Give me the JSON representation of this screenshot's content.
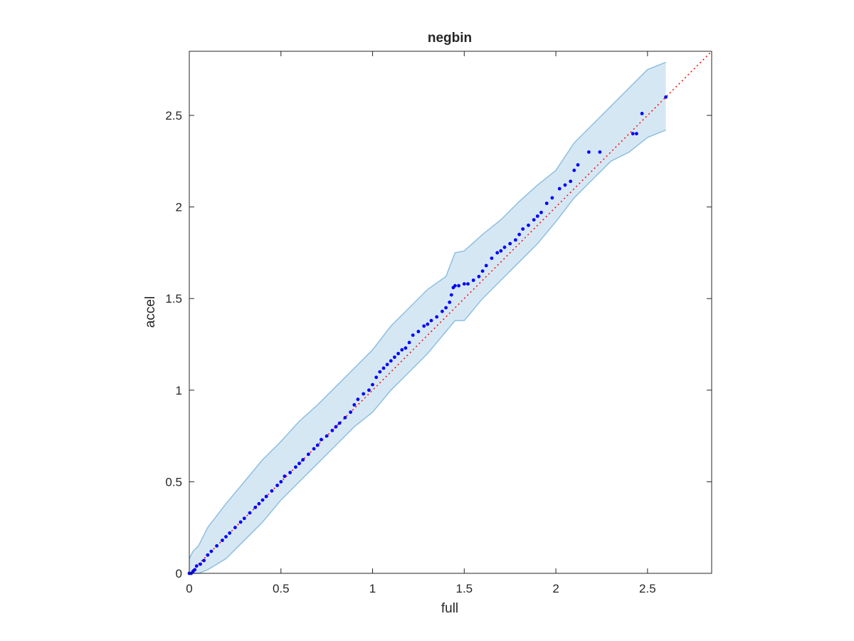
{
  "chart_data": {
    "type": "scatter",
    "title": "negbin",
    "xlabel": "full",
    "ylabel": "accel",
    "xlim": [
      0,
      2.85
    ],
    "ylim": [
      0,
      2.85
    ],
    "xticks": [
      "0",
      "0.5",
      "1",
      "1.5",
      "2",
      "2.5"
    ],
    "xtick_values": [
      0,
      0.5,
      1,
      1.5,
      2,
      2.5
    ],
    "yticks": [
      "0",
      "0.5",
      "1",
      "1.5",
      "2",
      "2.5"
    ],
    "ytick_values": [
      0,
      0.5,
      1,
      1.5,
      2,
      2.5
    ],
    "grid": false,
    "legend": "none",
    "colors": {
      "points": "#0000ff",
      "reference_line": "#ff0000",
      "band_fill": "#d6e7f4",
      "band_edge": "#8dbfe0",
      "axes": "#262626"
    },
    "reference_line": {
      "style": "dotted",
      "from": [
        0,
        0
      ],
      "to": [
        2.85,
        2.85
      ]
    },
    "band": {
      "x": [
        0.0,
        0.02,
        0.05,
        0.1,
        0.2,
        0.3,
        0.4,
        0.5,
        0.6,
        0.7,
        0.8,
        0.9,
        1.0,
        1.1,
        1.2,
        1.3,
        1.4,
        1.45,
        1.5,
        1.6,
        1.7,
        1.8,
        1.9,
        2.0,
        2.1,
        2.2,
        2.3,
        2.4,
        2.5,
        2.6
      ],
      "upper": [
        0.08,
        0.12,
        0.15,
        0.25,
        0.38,
        0.5,
        0.62,
        0.72,
        0.83,
        0.92,
        1.02,
        1.12,
        1.22,
        1.35,
        1.45,
        1.55,
        1.62,
        1.75,
        1.76,
        1.85,
        1.93,
        2.03,
        2.12,
        2.2,
        2.35,
        2.45,
        2.55,
        2.65,
        2.75,
        2.79
      ],
      "lower": [
        0.0,
        0.0,
        0.0,
        0.02,
        0.08,
        0.18,
        0.28,
        0.4,
        0.5,
        0.6,
        0.7,
        0.8,
        0.88,
        1.0,
        1.1,
        1.2,
        1.32,
        1.38,
        1.38,
        1.5,
        1.6,
        1.7,
        1.8,
        1.92,
        2.05,
        2.15,
        2.25,
        2.3,
        2.38,
        2.42
      ]
    },
    "series": [
      {
        "x": [
          0.0,
          0.01,
          0.02,
          0.03,
          0.04,
          0.06,
          0.08,
          0.1,
          0.12,
          0.15,
          0.18,
          0.2,
          0.22,
          0.25,
          0.28,
          0.3,
          0.33,
          0.36,
          0.38,
          0.4,
          0.42,
          0.45,
          0.48,
          0.5,
          0.52,
          0.55,
          0.58,
          0.6,
          0.62,
          0.65,
          0.68,
          0.7,
          0.72,
          0.75,
          0.78,
          0.8,
          0.82,
          0.85,
          0.88,
          0.9,
          0.92,
          0.95,
          0.98,
          1.0,
          1.02,
          1.04,
          1.06,
          1.08,
          1.1,
          1.12,
          1.14,
          1.16,
          1.18,
          1.2,
          1.22,
          1.25,
          1.28,
          1.3,
          1.32,
          1.35,
          1.38,
          1.4,
          1.42,
          1.43,
          1.44,
          1.45,
          1.47,
          1.5,
          1.52,
          1.55,
          1.58,
          1.6,
          1.62,
          1.65,
          1.68,
          1.7,
          1.72,
          1.75,
          1.78,
          1.8,
          1.82,
          1.85,
          1.88,
          1.9,
          1.92,
          1.95,
          1.98,
          2.02,
          2.05,
          2.08,
          2.1,
          2.12,
          2.18,
          2.24,
          2.42,
          2.44,
          2.47,
          2.6
        ],
        "y": [
          0.0,
          0.0,
          0.01,
          0.02,
          0.04,
          0.05,
          0.07,
          0.1,
          0.12,
          0.15,
          0.18,
          0.2,
          0.22,
          0.25,
          0.28,
          0.3,
          0.33,
          0.36,
          0.38,
          0.4,
          0.42,
          0.45,
          0.48,
          0.5,
          0.53,
          0.55,
          0.58,
          0.6,
          0.62,
          0.65,
          0.68,
          0.7,
          0.73,
          0.75,
          0.78,
          0.8,
          0.82,
          0.85,
          0.88,
          0.92,
          0.95,
          0.98,
          1.0,
          1.03,
          1.07,
          1.1,
          1.12,
          1.14,
          1.16,
          1.18,
          1.2,
          1.22,
          1.23,
          1.26,
          1.3,
          1.32,
          1.35,
          1.36,
          1.38,
          1.4,
          1.43,
          1.45,
          1.48,
          1.52,
          1.56,
          1.57,
          1.57,
          1.58,
          1.58,
          1.6,
          1.62,
          1.65,
          1.68,
          1.72,
          1.75,
          1.76,
          1.78,
          1.8,
          1.82,
          1.85,
          1.88,
          1.9,
          1.93,
          1.95,
          1.97,
          2.02,
          2.05,
          2.1,
          2.12,
          2.14,
          2.2,
          2.23,
          2.3,
          2.3,
          2.4,
          2.4,
          2.51,
          2.6
        ]
      }
    ]
  }
}
